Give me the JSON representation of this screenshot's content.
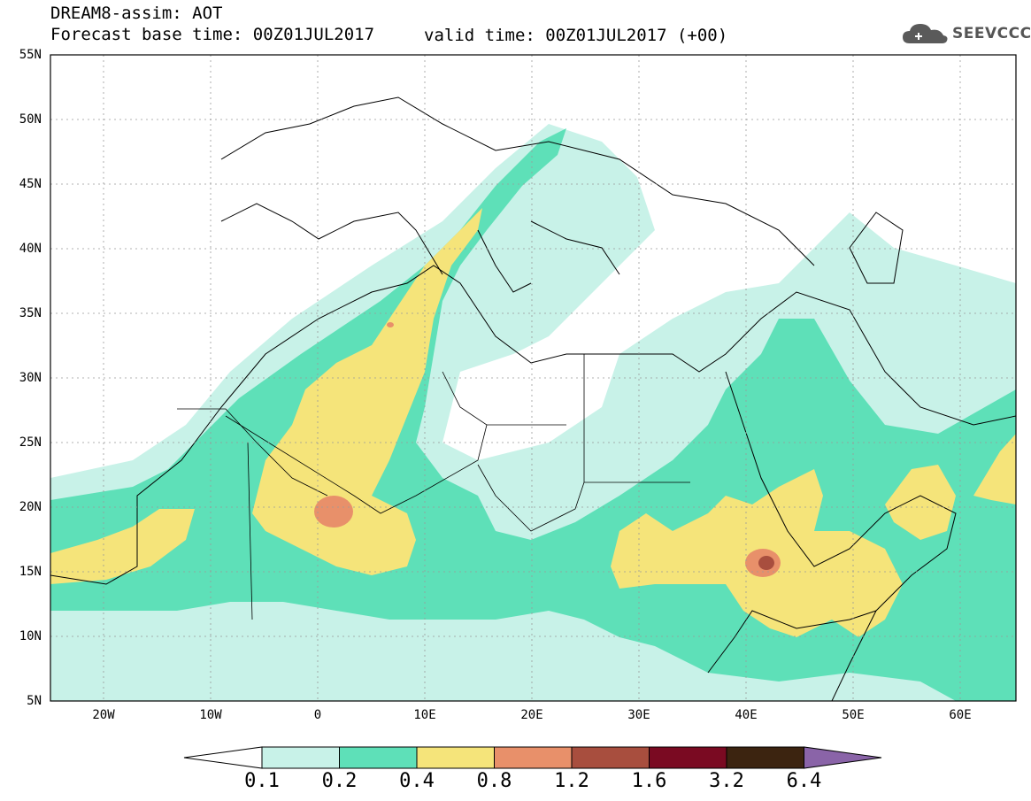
{
  "title": {
    "line1": "DREAM8-assim: AOT",
    "line2_left": "Forecast base time: 00Z01JUL2017",
    "line2_right": "valid time: 00Z01JUL2017 (+00)"
  },
  "logo": {
    "text": "SEEVCCC",
    "icon": "cloud-icon"
  },
  "map": {
    "lat_labels": [
      "55N",
      "50N",
      "45N",
      "40N",
      "35N",
      "30N",
      "25N",
      "20N",
      "15N",
      "10N",
      "5N"
    ],
    "lon_labels": [
      "20W",
      "10W",
      "0",
      "10E",
      "20E",
      "30E",
      "40E",
      "50E",
      "60E"
    ],
    "extent": {
      "lon": [
        -25,
        65
      ],
      "lat": [
        5,
        55
      ]
    },
    "grid": true
  },
  "colorbar": {
    "labels": [
      "0.1",
      "0.2",
      "0.4",
      "0.8",
      "1.2",
      "1.6",
      "3.2",
      "6.4"
    ],
    "colors": [
      "#ffffff",
      "#c8f2e8",
      "#5ee0b8",
      "#f5e47a",
      "#e8906a",
      "#a84e3e",
      "#7a0a22",
      "#3c2410",
      "#8a64a8"
    ]
  }
}
